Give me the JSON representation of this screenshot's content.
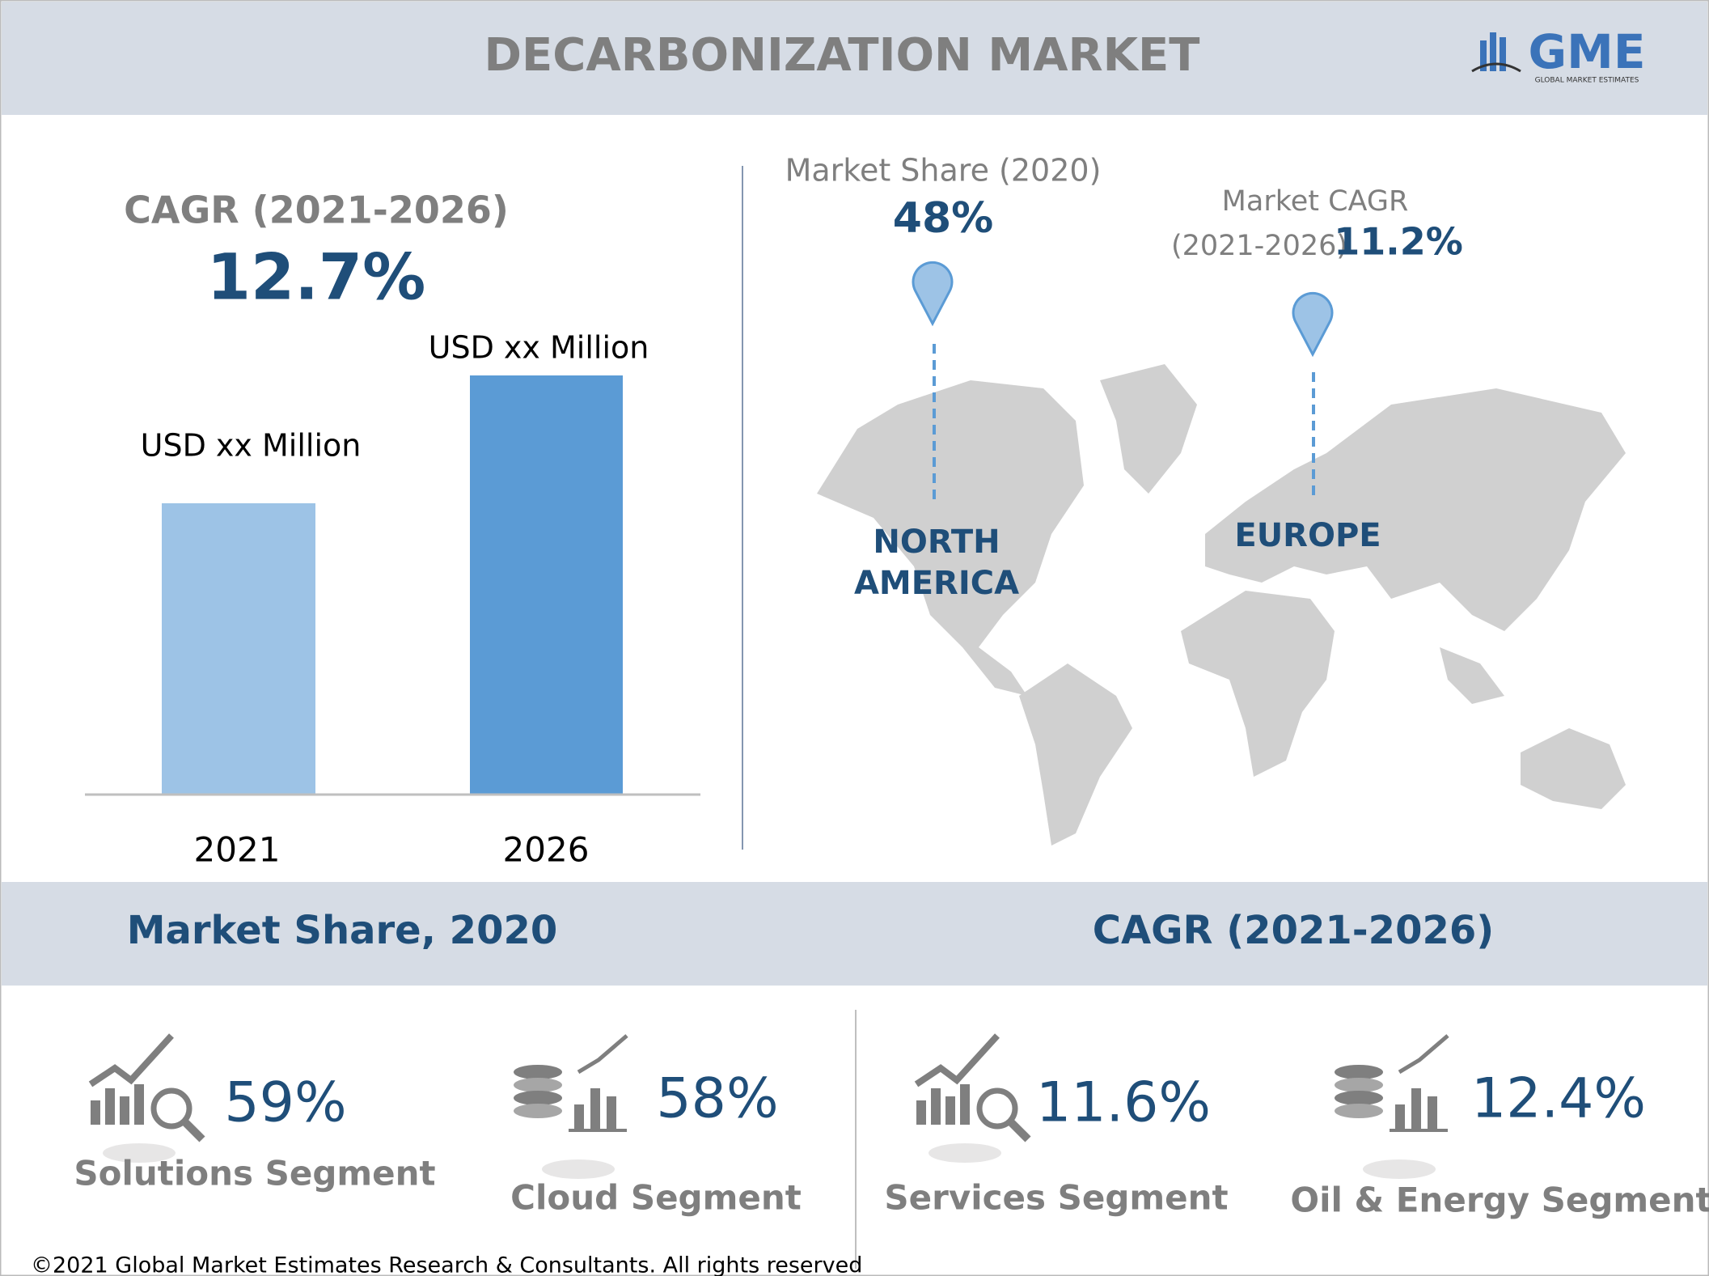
{
  "header": {
    "title": "DECARBONIZATION MARKET",
    "logo": "GME",
    "logo_subtitle": "GLOBAL MARKET ESTIMATES"
  },
  "cagr_panel": {
    "label": "CAGR (2021-2026)",
    "value": "12.7%",
    "bars": [
      {
        "year": "2021",
        "label": "USD xx Million"
      },
      {
        "year": "2026",
        "label": "USD xx Million"
      }
    ]
  },
  "map_panel": {
    "share_label": "Market Share (2020)",
    "share_value": "48%",
    "share_region": [
      "NORTH",
      "AMERICA"
    ],
    "cagr_label": [
      "Market CAGR",
      "(2021-2026)"
    ],
    "cagr_value": "11.2%",
    "cagr_region": "EUROPE"
  },
  "sections": [
    {
      "title": "Market Share, 2020",
      "items": [
        {
          "value": "59%",
          "label": "Solutions Segment"
        },
        {
          "value": "58%",
          "label": "Cloud Segment"
        }
      ]
    },
    {
      "title": "CAGR (2021-2026)",
      "items": [
        {
          "value": "11.6%",
          "label": "Services Segment"
        },
        {
          "value": "12.4%",
          "label": "Oil & Energy Segment"
        }
      ]
    }
  ],
  "footer": "©2021 Global Market Estimates Research & Consultants. All rights reserved"
}
